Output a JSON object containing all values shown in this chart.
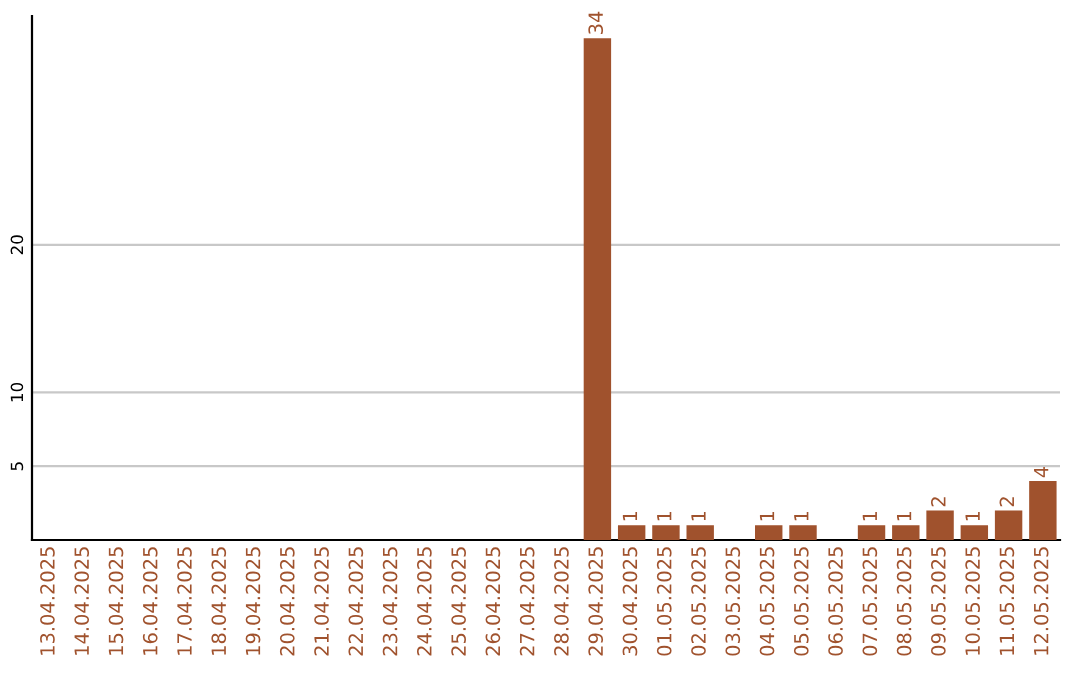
{
  "chart_data": {
    "type": "bar",
    "categories": [
      "13.04.2025",
      "14.04.2025",
      "15.04.2025",
      "16.04.2025",
      "17.04.2025",
      "18.04.2025",
      "19.04.2025",
      "20.04.2025",
      "21.04.2025",
      "22.04.2025",
      "23.04.2025",
      "24.04.2025",
      "25.04.2025",
      "26.04.2025",
      "27.04.2025",
      "28.04.2025",
      "29.04.2025",
      "30.04.2025",
      "01.05.2025",
      "02.05.2025",
      "03.05.2025",
      "04.05.2025",
      "05.05.2025",
      "06.05.2025",
      "07.05.2025",
      "08.05.2025",
      "09.05.2025",
      "10.05.2025",
      "11.05.2025",
      "12.05.2025"
    ],
    "values": [
      0,
      0,
      0,
      0,
      0,
      0,
      0,
      0,
      0,
      0,
      0,
      0,
      0,
      0,
      0,
      0,
      34,
      1,
      1,
      1,
      0,
      1,
      1,
      0,
      1,
      1,
      2,
      1,
      2,
      4
    ],
    "value_labels": [
      null,
      null,
      null,
      null,
      null,
      null,
      null,
      null,
      null,
      null,
      null,
      null,
      null,
      null,
      null,
      null,
      "34",
      "1",
      "1",
      "1",
      null,
      "1",
      "1",
      null,
      "1",
      "1",
      "2",
      "1",
      "2",
      "4"
    ],
    "color": "#a0522d",
    "ylim": [
      0,
      35.5
    ],
    "yticks": [
      5,
      10,
      20
    ],
    "grid": "y"
  }
}
